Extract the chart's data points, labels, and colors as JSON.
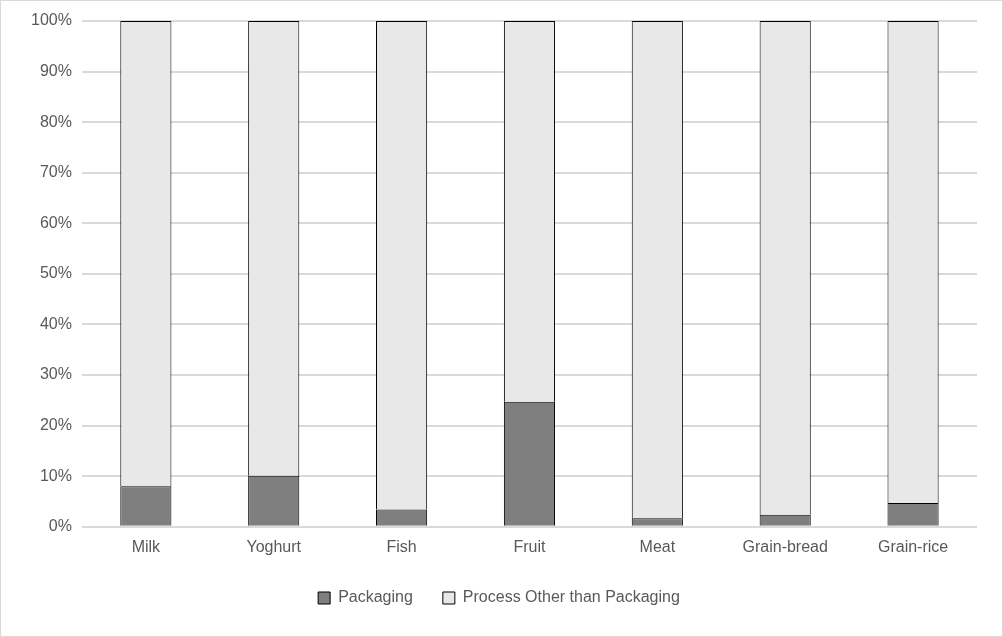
{
  "chart_data": {
    "type": "bar",
    "stacked": true,
    "categories": [
      "Milk",
      "Yoghurt",
      "Fish",
      "Fruit",
      "Meat",
      "Grain-bread",
      "Grain-rice"
    ],
    "series": [
      {
        "name": "Packaging",
        "color": "#7f7f7f",
        "values": [
          8.0,
          10.1,
          3.4,
          24.7,
          1.7,
          2.4,
          4.7
        ]
      },
      {
        "name": "Process Other than Packaging",
        "color": "#e8e8e8",
        "values": [
          92.0,
          89.9,
          96.6,
          75.3,
          98.3,
          97.6,
          95.3
        ]
      }
    ],
    "ylim": [
      0,
      100
    ],
    "yticks": [
      {
        "value": 0,
        "label": "0%"
      },
      {
        "value": 10,
        "label": "10%"
      },
      {
        "value": 20,
        "label": "20%"
      },
      {
        "value": 30,
        "label": "30%"
      },
      {
        "value": 40,
        "label": "40%"
      },
      {
        "value": 50,
        "label": "50%"
      },
      {
        "value": 60,
        "label": "60%"
      },
      {
        "value": 70,
        "label": "70%"
      },
      {
        "value": 80,
        "label": "80%"
      },
      {
        "value": 90,
        "label": "90%"
      },
      {
        "value": 100,
        "label": "100%"
      }
    ],
    "grid": "y",
    "legend": "bottom"
  }
}
